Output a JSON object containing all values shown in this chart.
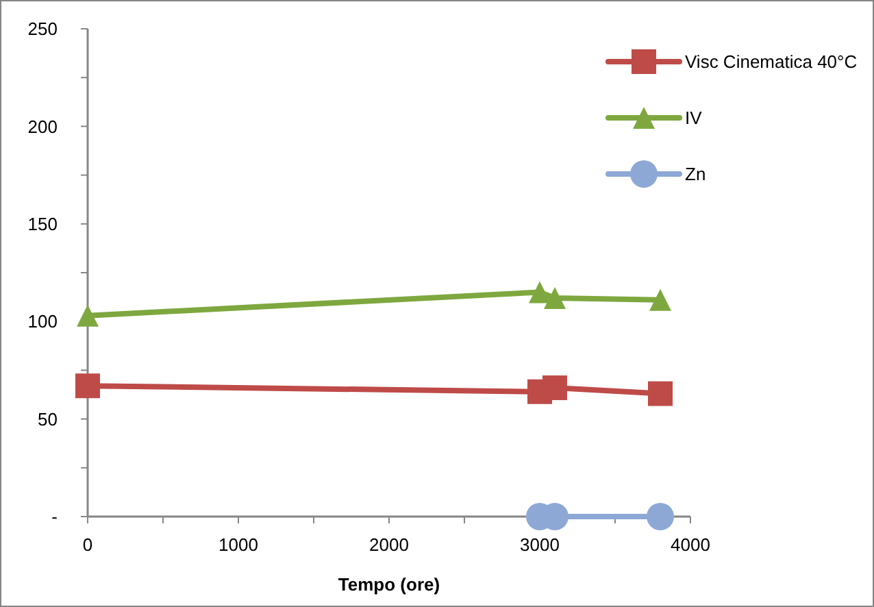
{
  "chart_data": {
    "type": "line",
    "xlabel": "Tempo (ore)",
    "xlim": [
      0,
      4000
    ],
    "ylim": [
      0,
      250
    ],
    "xticks": [
      0,
      {
        "value": 500,
        "label": null
      },
      1000,
      {
        "value": 1500,
        "label": null
      },
      2000,
      {
        "value": 2500,
        "label": null
      },
      3000,
      {
        "value": 3500,
        "label": null
      },
      4000
    ],
    "yticks": [
      {
        "value": 0,
        "label": "-"
      },
      {
        "value": 25,
        "label": null
      },
      50,
      {
        "value": 75,
        "label": null
      },
      100,
      {
        "value": 125,
        "label": null
      },
      150,
      {
        "value": 175,
        "label": null
      },
      200,
      {
        "value": 225,
        "label": null
      },
      250
    ],
    "grid": false,
    "legend": "top right",
    "series": [
      {
        "name": "Visc Cinematica 40°C",
        "color": "#be4b48",
        "marker": "square",
        "x": [
          0,
          3000,
          3100,
          3800
        ],
        "values": [
          67,
          64,
          66,
          63
        ]
      },
      {
        "name": "IV",
        "color": "#7ea83f",
        "marker": "triangle",
        "x": [
          0,
          3000,
          3100,
          3800
        ],
        "values": [
          103,
          115,
          112,
          111
        ]
      },
      {
        "name": "Zn",
        "color": "#8ea8d6",
        "marker": "circle",
        "x": [
          3000,
          3100,
          3800
        ],
        "values": [
          0,
          0,
          0
        ]
      }
    ]
  }
}
